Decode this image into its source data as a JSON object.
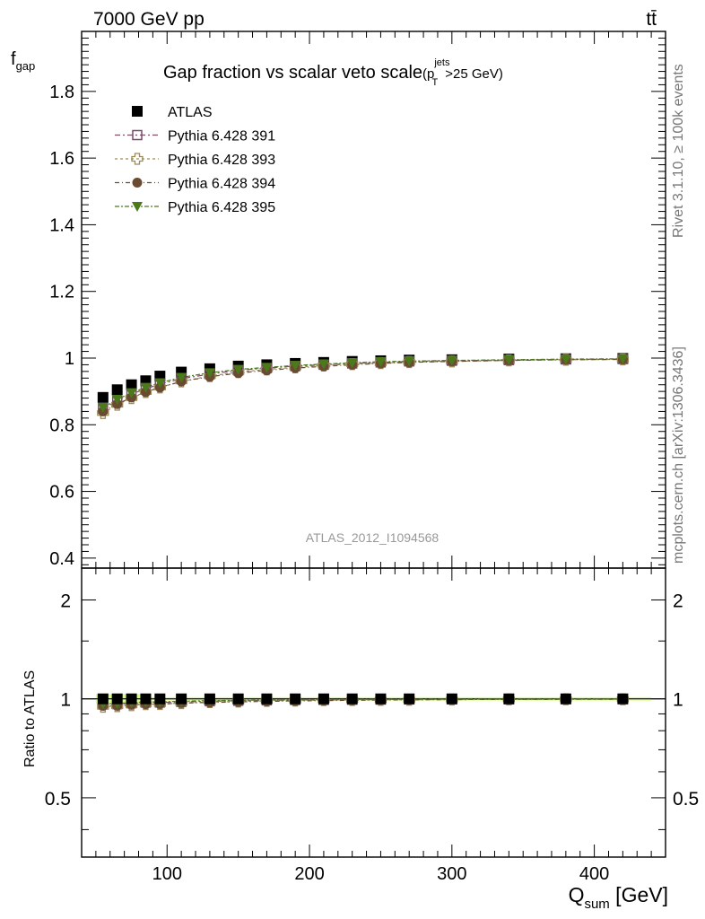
{
  "header": {
    "energy_label": "7000 GeV pp",
    "process_label": "tt̄"
  },
  "side_labels": {
    "rivet": "Rivet 3.1.10, ≥ 100k events",
    "mcplots": "mcplots.cern.ch [arXiv:1306.3436]"
  },
  "chart_data": {
    "type": "scatter",
    "title_main": "Gap fraction vs scalar veto scale",
    "title_cut_base": "(p",
    "title_cut_sup": "jets",
    "title_cut_sub": "T",
    "title_cut_tail": ">25 GeV)",
    "analysis_id": "ATLAS_2012_I1094568",
    "xlabel_base": "Q",
    "xlabel_sub": "sum",
    "xlabel_tail": " [GeV]",
    "ylabel_base": "f",
    "ylabel_sub": "gap",
    "ratio_ylabel": "Ratio to ATLAS",
    "xlim": [
      40,
      450
    ],
    "ylim": [
      0.37,
      1.98
    ],
    "ratio_ylim": [
      0.33,
      2.5
    ],
    "ratio_scale": "log",
    "x_ticks": [
      "100",
      "200",
      "300",
      "400"
    ],
    "y_ticks": [
      "0.4",
      "0.6",
      "0.8",
      "1",
      "1.2",
      "1.4",
      "1.6",
      "1.8"
    ],
    "ratio_ticks": [
      "0.5",
      "1",
      "2"
    ],
    "legend_position": "top-left",
    "x": [
      55,
      65,
      75,
      85,
      95,
      110,
      130,
      150,
      170,
      190,
      210,
      230,
      250,
      270,
      300,
      340,
      380,
      420
    ],
    "series": [
      {
        "name": "ATLAS",
        "marker": "filled-square",
        "color": "#000000",
        "values": [
          0.882,
          0.905,
          0.92,
          0.932,
          0.946,
          0.958,
          0.968,
          0.976,
          0.98,
          0.984,
          0.987,
          0.99,
          0.992,
          0.994,
          0.995,
          0.997,
          0.998,
          0.999
        ]
      },
      {
        "name": "Pythia 6.428 391",
        "marker": "open-square",
        "color": "#7a4a6a",
        "values": [
          0.848,
          0.872,
          0.892,
          0.908,
          0.922,
          0.938,
          0.952,
          0.963,
          0.97,
          0.976,
          0.98,
          0.984,
          0.987,
          0.99,
          0.992,
          0.994,
          0.996,
          0.997
        ]
      },
      {
        "name": "Pythia 6.428 393",
        "marker": "open-cross",
        "color": "#9a8a5a",
        "values": [
          0.835,
          0.86,
          0.88,
          0.898,
          0.912,
          0.93,
          0.946,
          0.958,
          0.966,
          0.972,
          0.978,
          0.982,
          0.985,
          0.988,
          0.99,
          0.993,
          0.995,
          0.996
        ]
      },
      {
        "name": "Pythia 6.428 394",
        "marker": "filled-circle",
        "color": "#6b4a32",
        "values": [
          0.84,
          0.862,
          0.882,
          0.898,
          0.912,
          0.93,
          0.944,
          0.955,
          0.963,
          0.97,
          0.975,
          0.98,
          0.984,
          0.987,
          0.99,
          0.993,
          0.995,
          0.996
        ]
      },
      {
        "name": "Pythia 6.428 395",
        "marker": "filled-triangle-down",
        "color": "#4a7a1a",
        "values": [
          0.852,
          0.876,
          0.896,
          0.912,
          0.926,
          0.942,
          0.956,
          0.966,
          0.972,
          0.978,
          0.982,
          0.986,
          0.989,
          0.991,
          0.993,
          0.995,
          0.997,
          0.998
        ]
      }
    ],
    "ref_band_color": "#ccff66"
  }
}
